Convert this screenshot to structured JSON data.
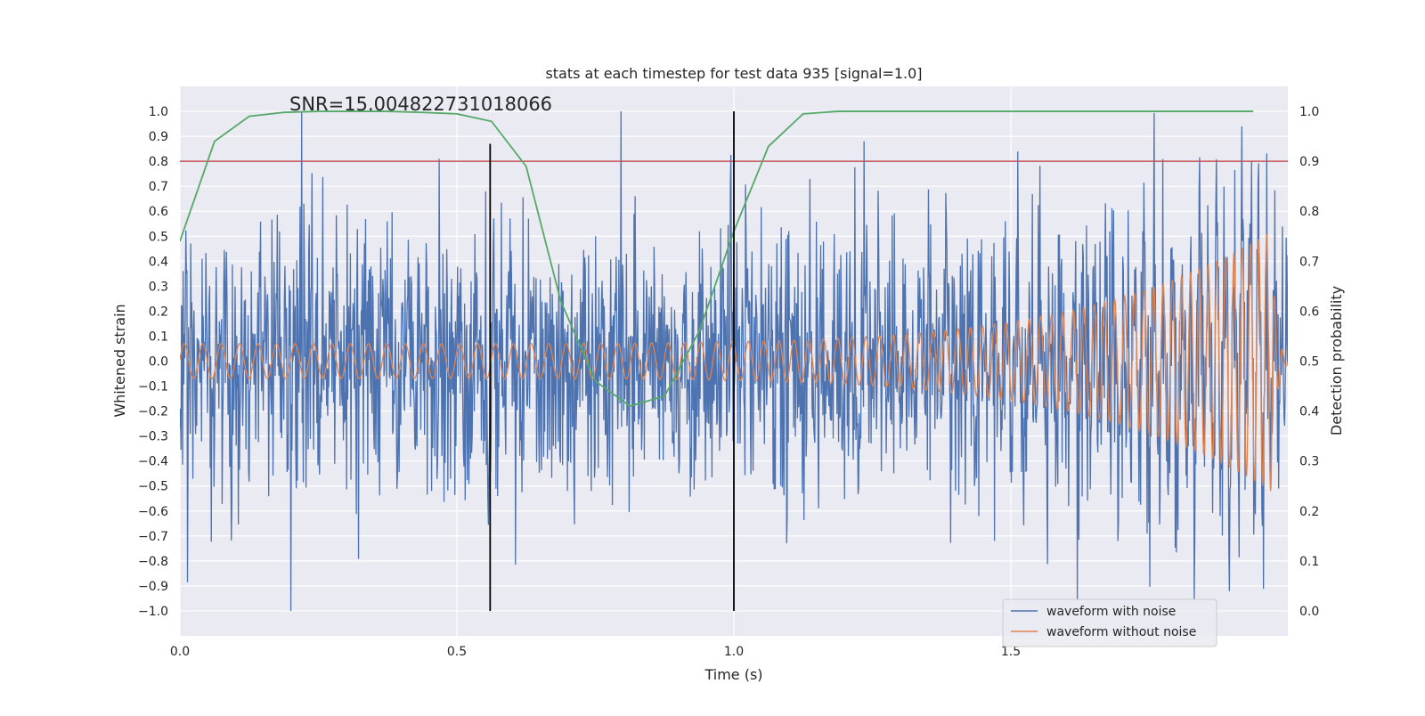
{
  "chart_data": {
    "type": "line",
    "title": "stats at each timestep for test data 935 [signal=1.0]",
    "xlabel": "Time (s)",
    "ylabel_left": "Whitened strain",
    "ylabel_right": "Detection probability",
    "annotation": "SNR=15.004822731018066",
    "xlim": [
      0.0,
      2.0
    ],
    "ylim_left": [
      -1.1,
      1.1
    ],
    "ylim_right": [
      -0.05,
      1.05
    ],
    "xticks": [
      "0.0",
      "0.5",
      "1.0",
      "1.5"
    ],
    "xtick_values": [
      0.0,
      0.5,
      1.0,
      1.5
    ],
    "yticks_left": [
      "1.0",
      "0.9",
      "0.8",
      "0.7",
      "0.6",
      "0.5",
      "0.4",
      "0.3",
      "0.2",
      "0.1",
      "0.0",
      "−0.1",
      "−0.2",
      "−0.3",
      "−0.4",
      "−0.5",
      "−0.6",
      "−0.7",
      "−0.8",
      "−0.9",
      "−1.0"
    ],
    "yticks_left_values": [
      1.0,
      0.9,
      0.8,
      0.7,
      0.6,
      0.5,
      0.4,
      0.3,
      0.2,
      0.1,
      0.0,
      -0.1,
      -0.2,
      -0.3,
      -0.4,
      -0.5,
      -0.6,
      -0.7,
      -0.8,
      -0.9,
      -1.0
    ],
    "yticks_right": [
      "1.0",
      "0.9",
      "0.8",
      "0.7",
      "0.6",
      "0.5",
      "0.4",
      "0.3",
      "0.2",
      "0.1",
      "0.0"
    ],
    "yticks_right_values": [
      1.0,
      0.9,
      0.8,
      0.7,
      0.6,
      0.5,
      0.4,
      0.3,
      0.2,
      0.1,
      0.0
    ],
    "grid": true,
    "legend_position": "bottom-right",
    "series": [
      {
        "name": "waveform with noise",
        "color": "#4c72b0",
        "axis": "left",
        "style": "noise",
        "x_range": [
          0.0,
          2.0
        ],
        "amplitude_range": [
          -1.0,
          1.0
        ],
        "peaks": [
          {
            "x": 0.22,
            "y": 1.0
          },
          {
            "x": 0.2,
            "y": -1.0
          },
          {
            "x": 1.62,
            "y": -0.96
          }
        ]
      },
      {
        "name": "waveform without noise",
        "color": "#dd8452",
        "axis": "left",
        "style": "chirp",
        "x_range": [
          0.0,
          2.0
        ],
        "amplitude_start": 0.07,
        "amplitude_peak": 0.52,
        "peak_time": 1.97
      },
      {
        "name": "detection probability",
        "color": "#55a868",
        "axis": "right",
        "style": "line",
        "x": [
          0.0,
          0.0625,
          0.125,
          0.1875,
          0.25,
          0.3125,
          0.375,
          0.4375,
          0.5,
          0.5625,
          0.625,
          0.6875,
          0.75,
          0.8125,
          0.875,
          0.9375,
          1.0,
          1.0625,
          1.125,
          1.1875,
          1.25,
          1.5,
          1.75,
          1.9375
        ],
        "y": [
          0.74,
          0.94,
          0.99,
          0.998,
          1.0,
          1.0,
          1.0,
          0.998,
          0.995,
          0.98,
          0.89,
          0.62,
          0.46,
          0.41,
          0.43,
          0.56,
          0.76,
          0.93,
          0.995,
          1.0,
          1.0,
          1.0,
          1.0,
          1.0
        ]
      }
    ],
    "hlines": [
      {
        "axis": "left",
        "y": 0.8,
        "color": "#c44e52"
      }
    ],
    "vlines": [
      {
        "x": 0.56,
        "y_range": [
          -1.0,
          0.87
        ],
        "color": "#000000"
      },
      {
        "x": 1.0,
        "y_range": [
          -1.0,
          1.0
        ],
        "color": "#000000"
      }
    ]
  }
}
